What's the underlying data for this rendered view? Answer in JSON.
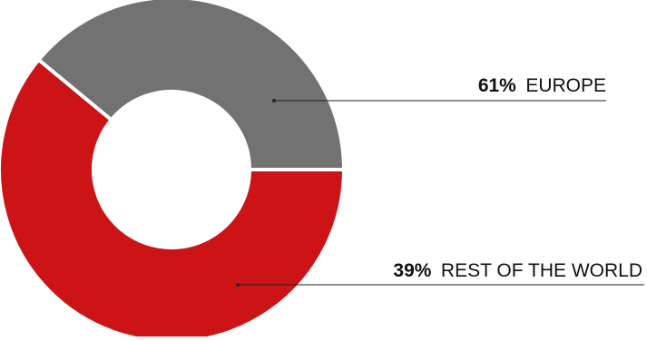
{
  "chart_data": {
    "type": "pie",
    "donut": true,
    "title": "",
    "slices": [
      {
        "label": "EUROPE",
        "value": 61,
        "value_text": "61%",
        "color": "#cc1417"
      },
      {
        "label": "REST OF THE WORLD",
        "value": 39,
        "value_text": "39%",
        "color": "#727272"
      }
    ],
    "legend": "callout-right",
    "colors": {
      "leader_line": "#222222",
      "text": "#111111",
      "separator": "#ffffff"
    }
  }
}
